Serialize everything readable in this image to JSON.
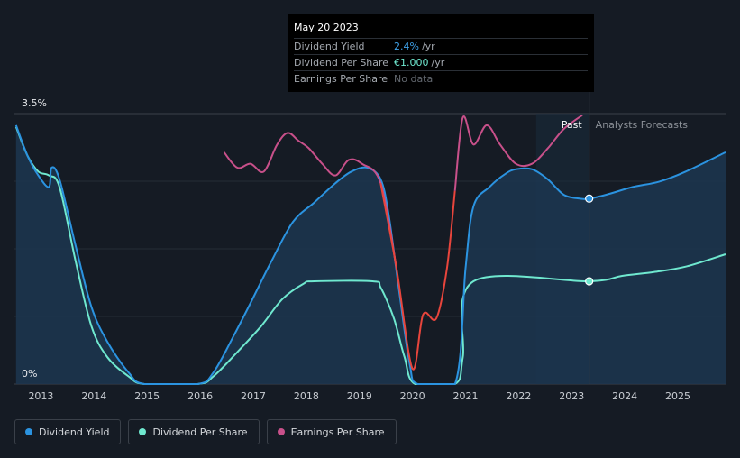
{
  "colors": {
    "background": "#151b24",
    "dividend_yield": "#2b93e0",
    "dividend_per_share": "#6fe8cf",
    "earnings_per_share": "#c8508a",
    "eps_negative": "#e8453c",
    "area_fill": "#1c3650",
    "past_band": "#1a2b3d"
  },
  "tooltip": {
    "date": "May 20 2023",
    "rows": [
      {
        "label": "Dividend Yield",
        "value": "2.4%",
        "unit": "/yr"
      },
      {
        "label": "Dividend Per Share",
        "value": "€1.000",
        "unit": "/yr"
      },
      {
        "label": "Earnings Per Share",
        "value": "No data",
        "unit": ""
      }
    ]
  },
  "legend": [
    {
      "label": "Dividend Yield",
      "color": "#2b93e0"
    },
    {
      "label": "Dividend Per Share",
      "color": "#6fe8cf"
    },
    {
      "label": "Earnings Per Share",
      "color": "#c8508a"
    }
  ],
  "chart_data": {
    "type": "line",
    "y_top_label": "3.5%",
    "y_bottom_label": "0%",
    "ylim": [
      0,
      3.5
    ],
    "xlim": [
      2012.55,
      2025.95
    ],
    "x_ticks": [
      "2013",
      "2014",
      "2015",
      "2016",
      "2017",
      "2018",
      "2019",
      "2020",
      "2021",
      "2022",
      "2023",
      "2024",
      "2025"
    ],
    "region_labels": {
      "past": "Past",
      "forecast": "Analysts Forecasts"
    },
    "forecast_start": 2023.38,
    "past_band_start": 2022.38,
    "series": [
      {
        "name": "Dividend Yield",
        "unit": "%",
        "points": [
          [
            2012.58,
            3.35
          ],
          [
            2012.8,
            2.95
          ],
          [
            2013.0,
            2.7
          ],
          [
            2013.2,
            2.55
          ],
          [
            2013.25,
            2.8
          ],
          [
            2013.4,
            2.65
          ],
          [
            2013.7,
            1.8
          ],
          [
            2014.0,
            1.0
          ],
          [
            2014.3,
            0.55
          ],
          [
            2014.7,
            0.15
          ],
          [
            2015.0,
            0.0
          ],
          [
            2016.0,
            0.0
          ],
          [
            2016.3,
            0.15
          ],
          [
            2016.7,
            0.65
          ],
          [
            2017.0,
            1.05
          ],
          [
            2017.4,
            1.6
          ],
          [
            2017.8,
            2.1
          ],
          [
            2018.2,
            2.35
          ],
          [
            2018.6,
            2.6
          ],
          [
            2018.9,
            2.75
          ],
          [
            2019.2,
            2.8
          ],
          [
            2019.45,
            2.65
          ],
          [
            2019.6,
            2.2
          ],
          [
            2019.8,
            1.2
          ],
          [
            2020.0,
            0.25
          ],
          [
            2020.15,
            0.0
          ],
          [
            2020.85,
            0.0
          ],
          [
            2021.05,
            1.5
          ],
          [
            2021.2,
            2.3
          ],
          [
            2021.5,
            2.55
          ],
          [
            2021.8,
            2.72
          ],
          [
            2022.0,
            2.78
          ],
          [
            2022.3,
            2.78
          ],
          [
            2022.6,
            2.65
          ],
          [
            2022.9,
            2.45
          ],
          [
            2023.2,
            2.4
          ],
          [
            2023.38,
            2.4
          ],
          [
            2023.7,
            2.45
          ],
          [
            2024.2,
            2.55
          ],
          [
            2024.7,
            2.62
          ],
          [
            2025.2,
            2.75
          ],
          [
            2025.95,
            3.0
          ]
        ]
      },
      {
        "name": "Dividend Per Share",
        "unit": "€",
        "points": [
          [
            2012.58,
            3.33
          ],
          [
            2012.8,
            2.95
          ],
          [
            2013.0,
            2.75
          ],
          [
            2013.2,
            2.7
          ],
          [
            2013.4,
            2.55
          ],
          [
            2013.7,
            1.6
          ],
          [
            2014.0,
            0.75
          ],
          [
            2014.3,
            0.35
          ],
          [
            2014.7,
            0.1
          ],
          [
            2015.0,
            0.0
          ],
          [
            2016.0,
            0.0
          ],
          [
            2016.3,
            0.1
          ],
          [
            2016.8,
            0.45
          ],
          [
            2017.2,
            0.75
          ],
          [
            2017.6,
            1.1
          ],
          [
            2018.0,
            1.3
          ],
          [
            2018.2,
            1.33
          ],
          [
            2019.3,
            1.33
          ],
          [
            2019.45,
            1.25
          ],
          [
            2019.7,
            0.85
          ],
          [
            2019.9,
            0.35
          ],
          [
            2020.1,
            0.0
          ],
          [
            2020.85,
            0.0
          ],
          [
            2021.0,
            0.35
          ],
          [
            2021.2,
            1.33
          ],
          [
            2023.38,
            1.33
          ],
          [
            2024.0,
            1.4
          ],
          [
            2024.6,
            1.45
          ],
          [
            2025.2,
            1.52
          ],
          [
            2025.95,
            1.68
          ]
        ]
      },
      {
        "name": "Earnings Per Share",
        "unit": "",
        "points": [
          [
            2016.5,
            3.0
          ],
          [
            2016.75,
            2.8
          ],
          [
            2017.0,
            2.85
          ],
          [
            2017.25,
            2.75
          ],
          [
            2017.5,
            3.1
          ],
          [
            2017.7,
            3.25
          ],
          [
            2017.9,
            3.15
          ],
          [
            2018.1,
            3.05
          ],
          [
            2018.35,
            2.85
          ],
          [
            2018.6,
            2.7
          ],
          [
            2018.85,
            2.9
          ],
          [
            2019.1,
            2.85
          ],
          [
            2019.45,
            2.6
          ],
          [
            2019.75,
            1.5
          ],
          [
            2020.05,
            0.2
          ],
          [
            2020.25,
            0.9
          ],
          [
            2020.5,
            0.85
          ],
          [
            2020.7,
            1.5
          ],
          [
            2020.85,
            2.5
          ],
          [
            2021.0,
            3.45
          ],
          [
            2021.2,
            3.1
          ],
          [
            2021.45,
            3.35
          ],
          [
            2021.7,
            3.1
          ],
          [
            2022.0,
            2.85
          ],
          [
            2022.3,
            2.85
          ],
          [
            2022.6,
            3.05
          ],
          [
            2022.9,
            3.3
          ],
          [
            2023.25,
            3.48
          ]
        ]
      }
    ]
  }
}
